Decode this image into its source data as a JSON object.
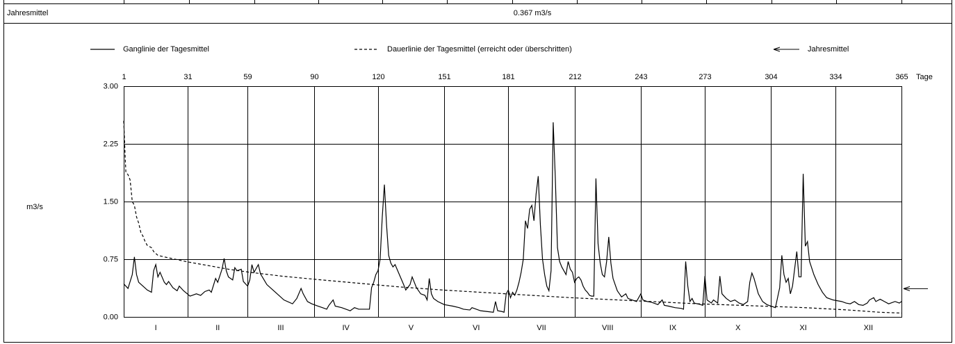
{
  "table": {
    "row_label": "Jahresmittel",
    "row_value": "0.367 m3/s"
  },
  "chart_data": {
    "type": "line",
    "y_label": "m3/s",
    "x_label": "Tage",
    "xlim": [
      1,
      365
    ],
    "xticks": [
      1,
      31,
      59,
      90,
      120,
      151,
      181,
      212,
      243,
      273,
      304,
      334,
      365
    ],
    "ylim": [
      0,
      3
    ],
    "yticks": [
      {
        "value": 0,
        "label": "0.00"
      },
      0.75,
      {
        "value": 1.5,
        "label": "1.50"
      },
      2.25,
      {
        "value": 3,
        "label": "3.00"
      }
    ],
    "grid": true,
    "months": [
      "I",
      "II",
      "III",
      "IV",
      "V",
      "VI",
      "VII",
      "VIII",
      "IX",
      "X",
      "XI",
      "XII"
    ],
    "mean_value": 0.367,
    "mean_label": "Jahresmittel",
    "series": [
      {
        "name": "Ganglinie der Tagesmittel",
        "color": "#000000",
        "dash": false,
        "x": [
          1,
          3,
          5,
          6,
          7,
          8,
          10,
          12,
          14,
          15,
          16,
          17,
          18,
          20,
          21,
          22,
          24,
          26,
          27,
          29,
          32,
          33,
          35,
          37,
          39,
          41,
          42,
          44,
          45,
          47,
          48,
          49,
          50,
          52,
          53,
          54,
          56,
          57,
          59,
          60,
          61,
          62,
          64,
          65,
          68,
          72,
          76,
          80,
          82,
          84,
          85,
          87,
          89,
          92,
          94,
          96,
          97,
          99,
          100,
          103,
          105,
          107,
          109,
          111,
          114,
          116,
          117,
          118,
          119,
          120,
          121,
          122,
          123,
          124,
          125,
          126,
          127,
          128,
          130,
          132,
          133,
          135,
          136,
          138,
          140,
          142,
          143,
          144,
          145,
          146,
          148,
          151,
          155,
          158,
          160,
          163,
          164,
          168,
          171,
          174,
          175,
          176,
          178,
          179,
          180,
          181,
          182,
          183,
          184,
          185,
          186,
          187,
          188,
          189,
          190,
          191,
          192,
          193,
          194,
          195,
          196,
          197,
          198,
          199,
          200,
          201,
          202,
          203,
          204,
          205,
          206,
          207,
          208,
          209,
          210,
          211,
          212,
          213,
          214,
          215,
          216,
          217,
          218,
          219,
          220,
          221,
          222,
          223,
          224,
          225,
          226,
          227,
          228,
          229,
          230,
          231,
          232,
          233,
          234,
          236,
          237,
          239,
          241,
          243,
          244,
          246,
          248,
          250,
          251,
          253,
          254,
          256,
          259,
          262,
          263,
          264,
          265,
          266,
          267,
          268,
          271,
          272,
          273,
          274,
          276,
          277,
          279,
          280,
          281,
          283,
          285,
          287,
          289,
          291,
          293,
          294,
          295,
          296,
          298,
          300,
          302,
          304,
          306,
          308,
          309,
          310,
          311,
          312,
          313,
          314,
          316,
          317,
          318,
          319,
          320,
          321,
          322,
          324,
          326,
          328,
          330,
          333,
          337,
          339,
          341,
          343,
          345,
          347,
          349,
          350,
          352,
          353,
          355,
          357,
          359,
          362,
          364,
          365
        ],
        "values": [
          0.43,
          0.37,
          0.55,
          0.78,
          0.55,
          0.45,
          0.4,
          0.35,
          0.32,
          0.6,
          0.68,
          0.52,
          0.58,
          0.45,
          0.42,
          0.46,
          0.38,
          0.34,
          0.4,
          0.34,
          0.27,
          0.28,
          0.3,
          0.28,
          0.33,
          0.35,
          0.32,
          0.5,
          0.45,
          0.62,
          0.76,
          0.6,
          0.52,
          0.48,
          0.64,
          0.6,
          0.62,
          0.46,
          0.4,
          0.48,
          0.68,
          0.58,
          0.68,
          0.56,
          0.42,
          0.32,
          0.22,
          0.17,
          0.24,
          0.37,
          0.3,
          0.2,
          0.17,
          0.14,
          0.12,
          0.1,
          0.15,
          0.22,
          0.14,
          0.12,
          0.1,
          0.08,
          0.12,
          0.1,
          0.1,
          0.1,
          0.38,
          0.45,
          0.55,
          0.6,
          0.75,
          1.3,
          1.72,
          1.2,
          0.8,
          0.7,
          0.65,
          0.68,
          0.55,
          0.42,
          0.35,
          0.42,
          0.52,
          0.38,
          0.3,
          0.28,
          0.22,
          0.5,
          0.3,
          0.24,
          0.2,
          0.16,
          0.14,
          0.12,
          0.1,
          0.09,
          0.12,
          0.08,
          0.07,
          0.06,
          0.2,
          0.08,
          0.07,
          0.06,
          0.3,
          0.35,
          0.25,
          0.32,
          0.28,
          0.35,
          0.45,
          0.58,
          0.75,
          1.25,
          1.15,
          1.4,
          1.45,
          1.25,
          1.6,
          1.83,
          1.2,
          0.75,
          0.55,
          0.4,
          0.34,
          0.6,
          2.53,
          1.8,
          0.9,
          0.72,
          0.65,
          0.6,
          0.55,
          0.72,
          0.62,
          0.58,
          0.45,
          0.5,
          0.52,
          0.48,
          0.4,
          0.35,
          0.32,
          0.28,
          0.27,
          0.27,
          1.8,
          0.95,
          0.7,
          0.55,
          0.52,
          0.72,
          1.04,
          0.7,
          0.5,
          0.42,
          0.34,
          0.3,
          0.26,
          0.3,
          0.24,
          0.22,
          0.2,
          0.3,
          0.22,
          0.2,
          0.19,
          0.17,
          0.16,
          0.22,
          0.15,
          0.14,
          0.12,
          0.11,
          0.1,
          0.72,
          0.4,
          0.2,
          0.24,
          0.18,
          0.16,
          0.15,
          0.53,
          0.22,
          0.18,
          0.22,
          0.18,
          0.53,
          0.3,
          0.24,
          0.2,
          0.22,
          0.18,
          0.16,
          0.2,
          0.45,
          0.57,
          0.5,
          0.3,
          0.2,
          0.16,
          0.14,
          0.12,
          0.38,
          0.8,
          0.55,
          0.45,
          0.5,
          0.3,
          0.4,
          0.85,
          0.52,
          0.52,
          1.86,
          0.92,
          0.98,
          0.72,
          0.55,
          0.42,
          0.32,
          0.25,
          0.22,
          0.2,
          0.18,
          0.17,
          0.2,
          0.16,
          0.15,
          0.18,
          0.22,
          0.25,
          0.2,
          0.23,
          0.2,
          0.17,
          0.2,
          0.18,
          0.2
        ]
      },
      {
        "name": "Dauerlinie der Tagesmittel (erreicht oder überschritten)",
        "color": "#000000",
        "dash": true,
        "x": [
          1,
          2,
          3,
          4,
          5,
          6,
          7,
          8,
          9,
          10,
          11,
          12,
          14,
          15,
          17,
          20,
          25,
          30,
          40,
          50,
          60,
          75,
          90,
          110,
          130,
          150,
          180,
          210,
          240,
          270,
          300,
          320,
          340,
          355,
          365
        ],
        "values": [
          2.55,
          1.88,
          1.85,
          1.78,
          1.5,
          1.45,
          1.3,
          1.22,
          1.1,
          1.05,
          0.98,
          0.93,
          0.9,
          0.85,
          0.8,
          0.78,
          0.75,
          0.72,
          0.67,
          0.62,
          0.58,
          0.53,
          0.49,
          0.44,
          0.39,
          0.35,
          0.3,
          0.25,
          0.21,
          0.17,
          0.14,
          0.12,
          0.09,
          0.06,
          0.05
        ]
      }
    ]
  }
}
